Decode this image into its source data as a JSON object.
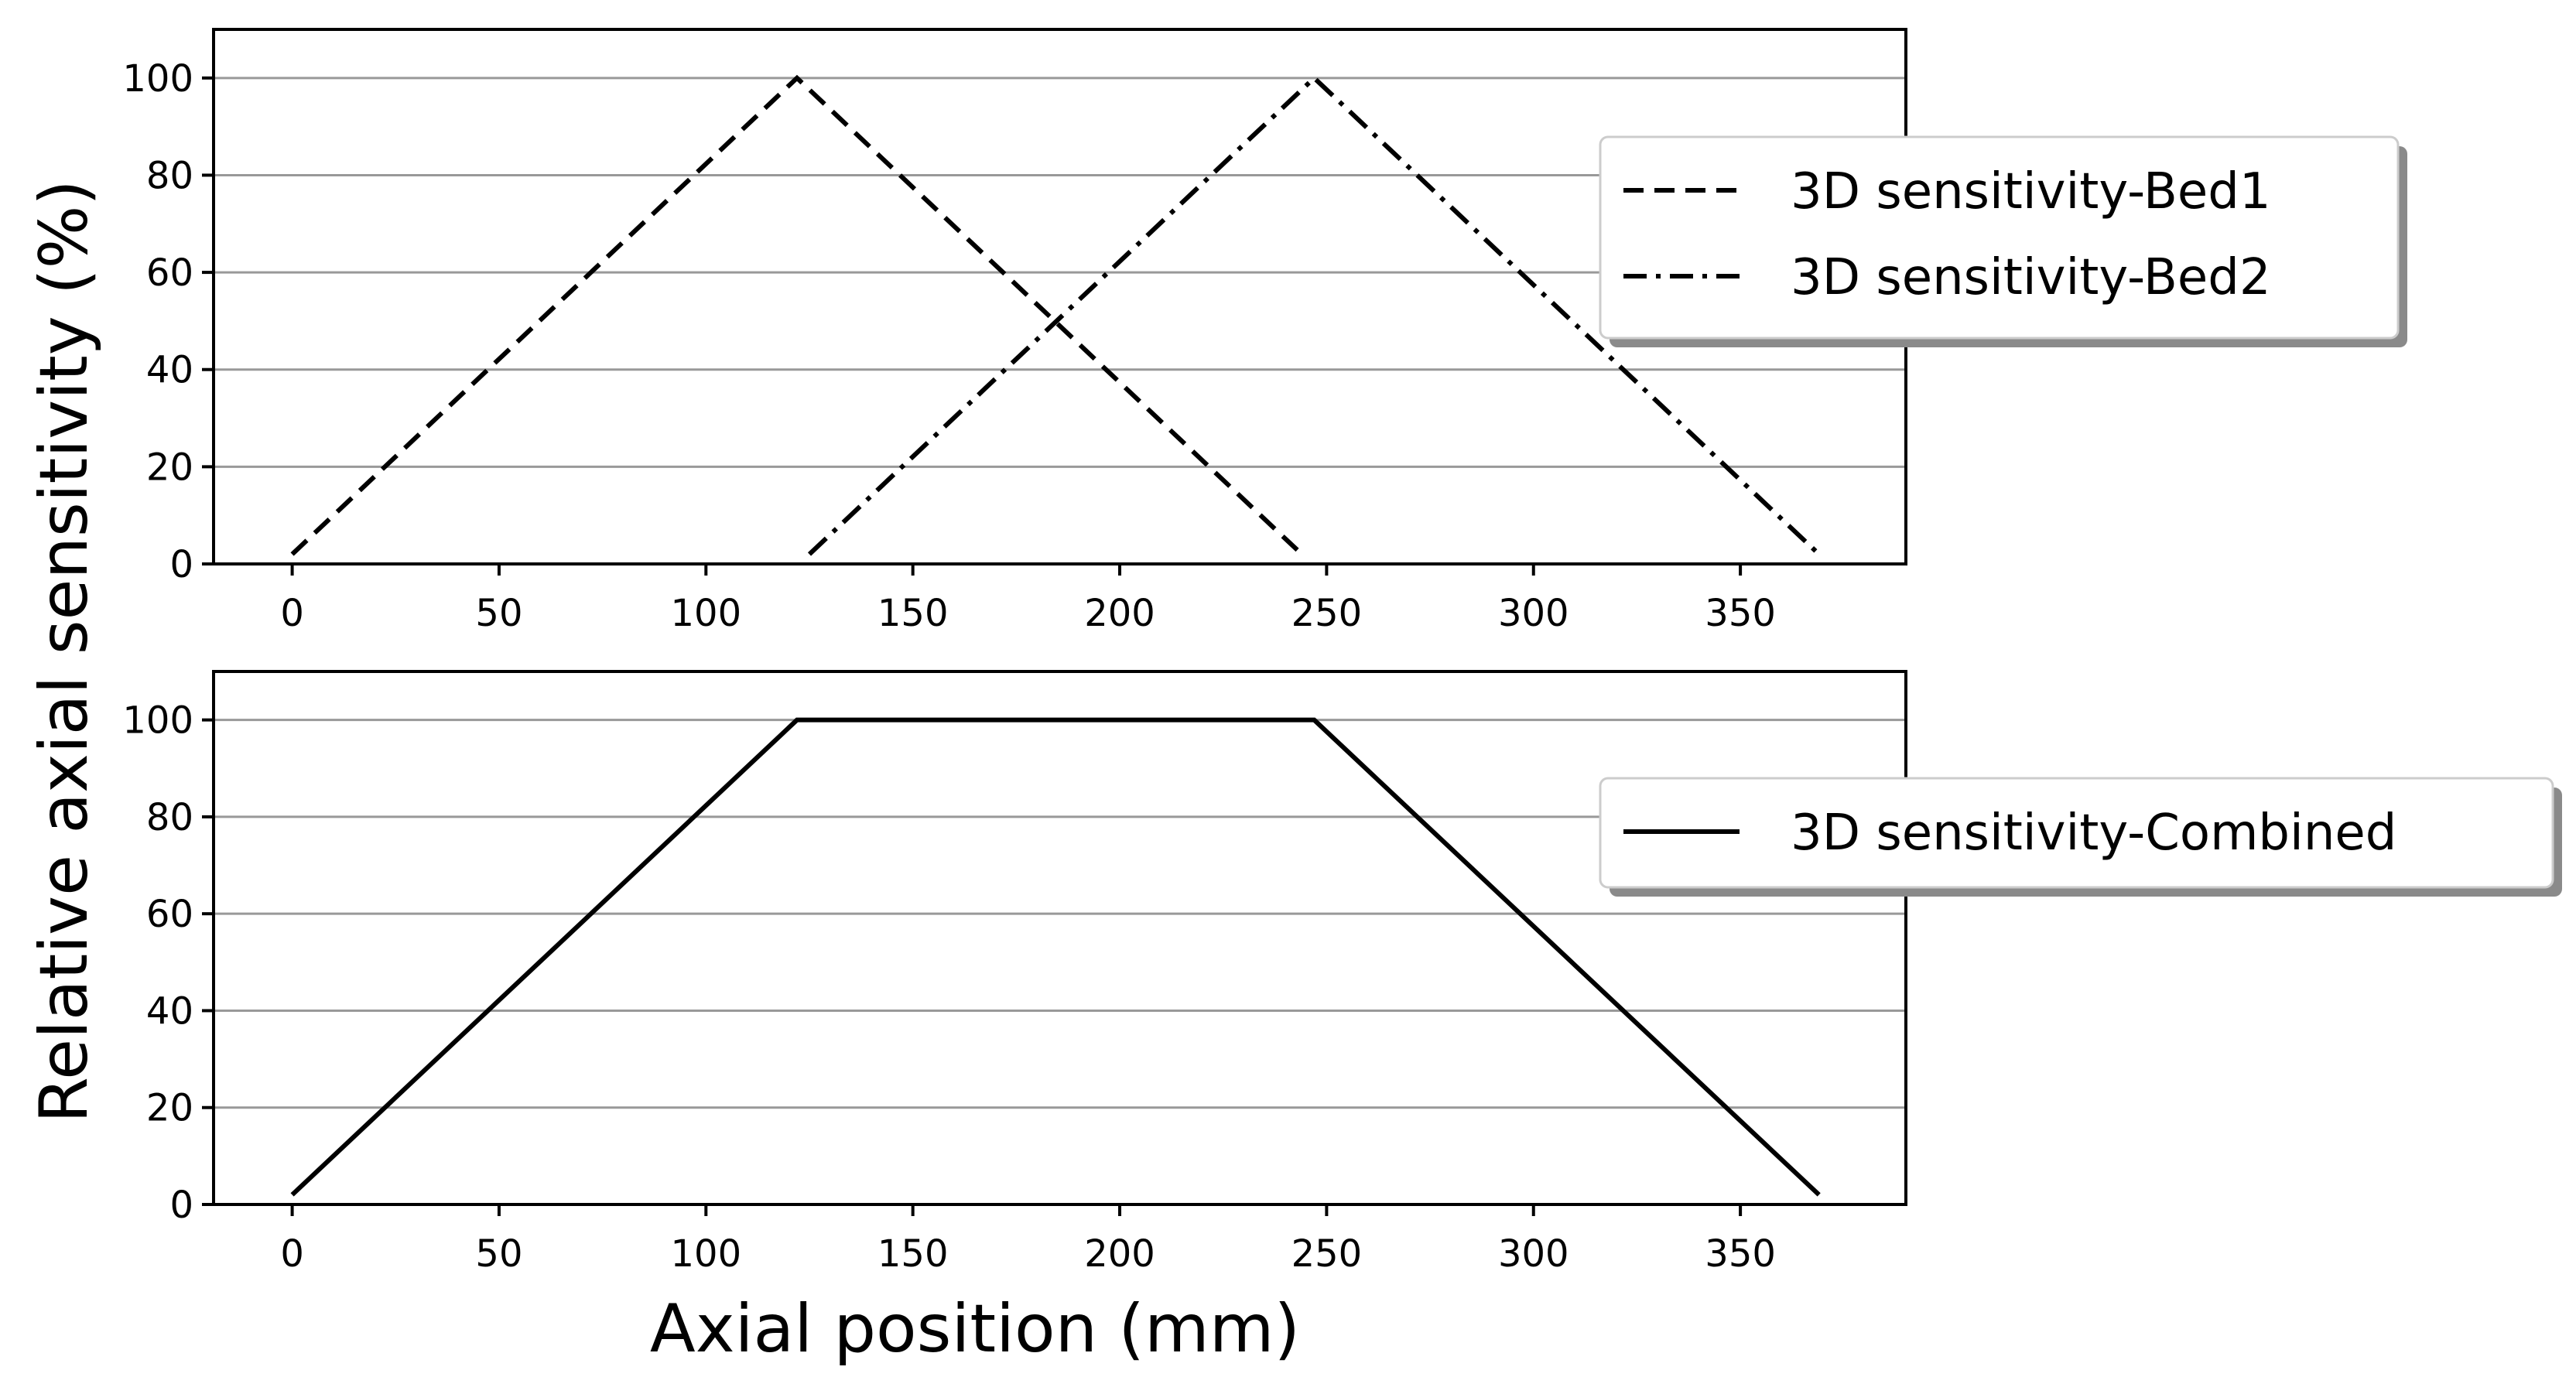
{
  "figure": {
    "ylabel": "Relative axial sensitivity (%)",
    "xlabel": "Axial position (mm)",
    "colors": {
      "lines": "#000000",
      "grid": "#999999",
      "legend_shadow": "#8a8a8a"
    }
  },
  "chart_data": [
    {
      "type": "line",
      "panel": "top",
      "xlim": [
        -19,
        390
      ],
      "ylim": [
        0,
        110
      ],
      "xticks": [
        0,
        50,
        100,
        150,
        200,
        250,
        300,
        350
      ],
      "yticks": [
        0,
        20,
        40,
        60,
        80,
        100
      ],
      "grid": "horizontal",
      "legend_position": "right",
      "series": [
        {
          "name": "3D sensitivity-Bed1",
          "style": "dashed",
          "x": [
            0,
            122,
            244
          ],
          "y": [
            2,
            100,
            2
          ]
        },
        {
          "name": "3D sensitivity-Bed2",
          "style": "dashdot",
          "x": [
            125,
            247,
            369
          ],
          "y": [
            2,
            100,
            2
          ]
        }
      ]
    },
    {
      "type": "line",
      "panel": "bottom",
      "xlim": [
        -19,
        390
      ],
      "ylim": [
        0,
        110
      ],
      "xticks": [
        0,
        50,
        100,
        150,
        200,
        250,
        300,
        350
      ],
      "yticks": [
        0,
        20,
        40,
        60,
        80,
        100
      ],
      "grid": "horizontal",
      "legend_position": "right",
      "series": [
        {
          "name": "3D sensitivity-Combined",
          "style": "solid",
          "x": [
            0,
            122,
            247,
            369
          ],
          "y": [
            2,
            100,
            100,
            2
          ]
        }
      ]
    }
  ]
}
